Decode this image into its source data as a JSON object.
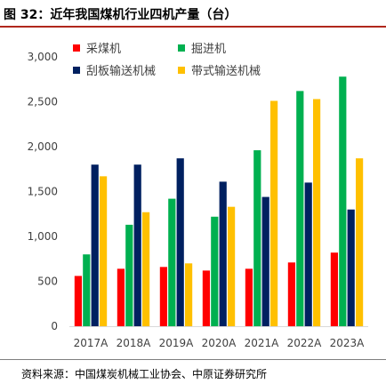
{
  "figure": {
    "title": "图 32：近年我国煤机行业四机产量（台）",
    "source": "资料来源：中国煤炭机械工业协会、中原证券研究所"
  },
  "chart_data": {
    "type": "bar",
    "categories": [
      "2017A",
      "2018A",
      "2019A",
      "2020A",
      "2021A",
      "2022A",
      "2023A"
    ],
    "series": [
      {
        "name": "采煤机",
        "color": "#ff0000",
        "values": [
          560,
          640,
          660,
          620,
          640,
          710,
          820
        ]
      },
      {
        "name": "掘进机",
        "color": "#00b050",
        "values": [
          800,
          1130,
          1420,
          1220,
          1960,
          2620,
          2780
        ]
      },
      {
        "name": "刮板输送机械",
        "color": "#002060",
        "values": [
          1800,
          1800,
          1870,
          1610,
          1440,
          1600,
          1300
        ]
      },
      {
        "name": "带式输送机械",
        "color": "#ffc000",
        "values": [
          1670,
          1270,
          700,
          1330,
          2510,
          2530,
          1870
        ]
      }
    ],
    "ylim": [
      0,
      3000
    ],
    "yticks": [
      0,
      500,
      1000,
      1500,
      2000,
      2500,
      3000
    ],
    "ytick_labels": [
      "0",
      "500",
      "1,000",
      "1,500",
      "2,000",
      "2,500",
      "3,000"
    ],
    "grid": false,
    "legend_position": "top-left"
  }
}
